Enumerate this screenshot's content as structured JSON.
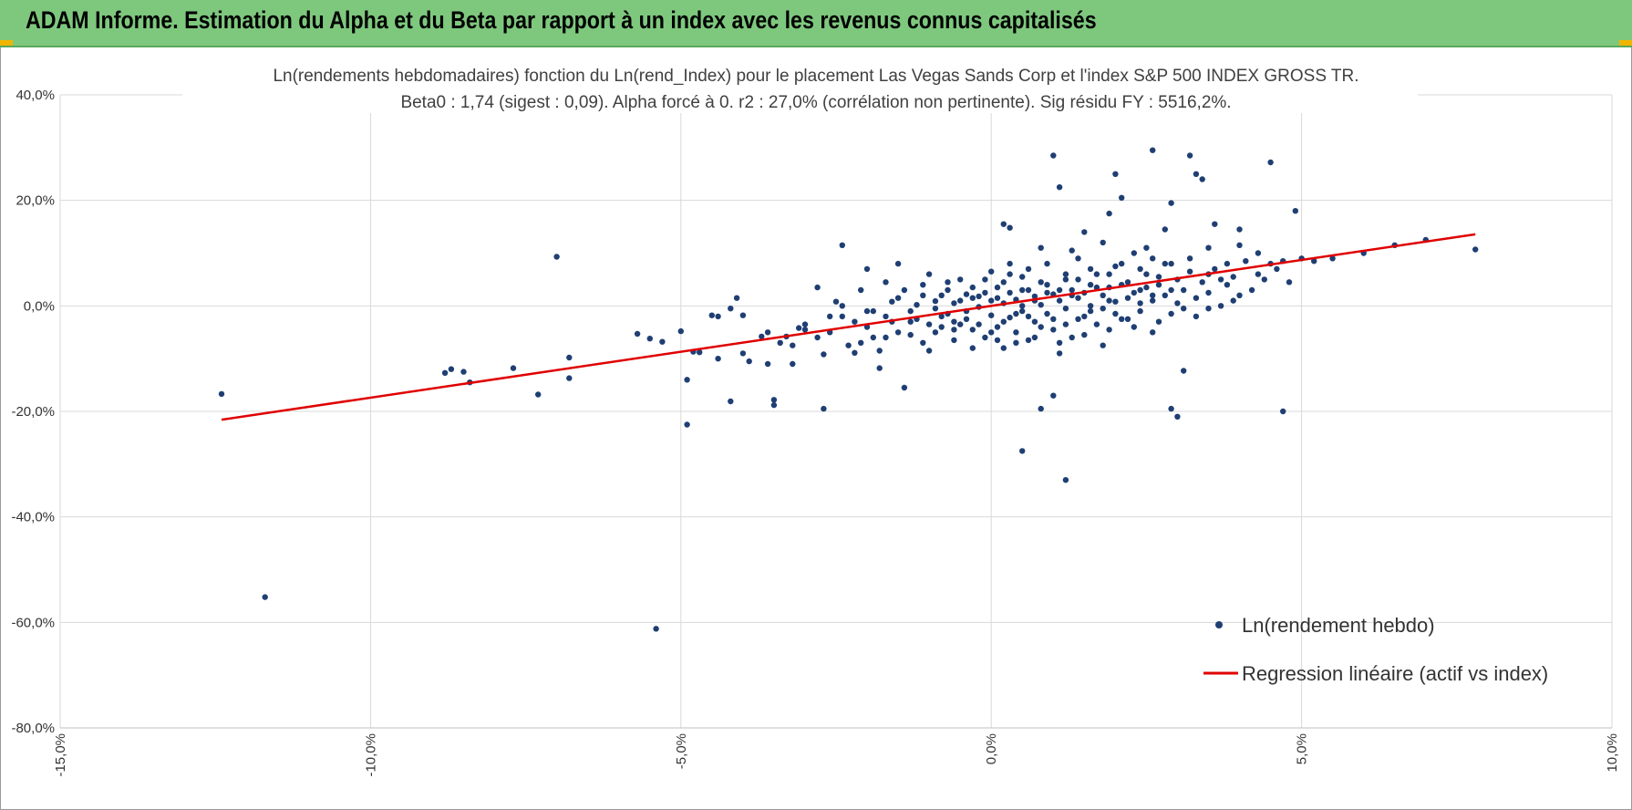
{
  "header": {
    "title": "ADAM Informe. Estimation du Alpha et du Beta par rapport à un index avec les revenus connus capitalisés"
  },
  "colors": {
    "header_bg": "#7ec87e",
    "points": "#1f3f73",
    "regression": "#e00000",
    "grid": "#d9d9d9",
    "accent": "#f0b400"
  },
  "chart_data": {
    "type": "scatter",
    "title": "Ln(rendements hebdomadaires) fonction du Ln(rend_Index) pour le placement Las Vegas Sands Corp et l'index S&P 500 INDEX GROSS TR.",
    "subtitle": "Beta0 : 1,74 (sigest : 0,09).  Alpha forcé à 0. r2 : 27,0% (corrélation non pertinente). Sig résidu FY : 5516,2%.",
    "xlim": [
      -0.15,
      0.1
    ],
    "ylim": [
      -0.8,
      0.4
    ],
    "x_ticks": [
      "-15,0%",
      "-10,0%",
      "-5,0%",
      "0,0%",
      "5,0%",
      "10,0%"
    ],
    "y_ticks": [
      "40,0%",
      "20,0%",
      "0,0%",
      "-20,0%",
      "-40,0%",
      "-60,0%",
      "-80,0%"
    ],
    "grid": true,
    "legend_position": "bottom-right",
    "series": [
      {
        "name": "Ln(rendement hebdo)",
        "kind": "scatter",
        "points": [
          [
            -0.124,
            -0.167
          ],
          [
            -0.117,
            -0.552
          ],
          [
            -0.088,
            -0.127
          ],
          [
            -0.087,
            -0.12
          ],
          [
            -0.085,
            -0.125
          ],
          [
            -0.084,
            -0.145
          ],
          [
            -0.077,
            -0.118
          ],
          [
            -0.073,
            -0.168
          ],
          [
            -0.07,
            0.093
          ],
          [
            -0.068,
            -0.098
          ],
          [
            -0.068,
            -0.137
          ],
          [
            -0.057,
            -0.053
          ],
          [
            -0.055,
            -0.062
          ],
          [
            -0.054,
            -0.612
          ],
          [
            -0.053,
            -0.068
          ],
          [
            -0.05,
            -0.048
          ],
          [
            -0.049,
            -0.225
          ],
          [
            -0.049,
            -0.14
          ],
          [
            -0.048,
            -0.087
          ],
          [
            -0.047,
            -0.088
          ],
          [
            -0.045,
            -0.018
          ],
          [
            -0.044,
            -0.02
          ],
          [
            -0.044,
            -0.1
          ],
          [
            -0.042,
            -0.181
          ],
          [
            -0.041,
            0.015
          ],
          [
            -0.04,
            -0.09
          ],
          [
            -0.04,
            -0.018
          ],
          [
            -0.039,
            -0.105
          ],
          [
            -0.037,
            -0.058
          ],
          [
            -0.036,
            -0.11
          ],
          [
            -0.035,
            -0.178
          ],
          [
            -0.035,
            -0.188
          ],
          [
            -0.034,
            -0.07
          ],
          [
            -0.033,
            -0.058
          ],
          [
            -0.032,
            -0.11
          ],
          [
            -0.031,
            -0.042
          ],
          [
            -0.03,
            -0.035
          ],
          [
            -0.028,
            0.035
          ],
          [
            -0.027,
            -0.195
          ],
          [
            -0.027,
            -0.092
          ],
          [
            -0.026,
            -0.05
          ],
          [
            -0.025,
            0.008
          ],
          [
            -0.024,
            -0.02
          ],
          [
            -0.023,
            -0.075
          ],
          [
            -0.022,
            -0.089
          ],
          [
            -0.021,
            -0.07
          ],
          [
            -0.02,
            -0.01
          ],
          [
            -0.02,
            -0.04
          ],
          [
            -0.019,
            -0.06
          ],
          [
            -0.018,
            -0.118
          ],
          [
            -0.017,
            -0.06
          ],
          [
            -0.016,
            0.008
          ],
          [
            -0.016,
            -0.03
          ],
          [
            -0.015,
            -0.05
          ],
          [
            -0.014,
            -0.155
          ],
          [
            -0.013,
            -0.01
          ],
          [
            -0.012,
            0.002
          ],
          [
            -0.011,
            -0.07
          ],
          [
            -0.01,
            -0.085
          ],
          [
            -0.009,
            0.009
          ],
          [
            -0.008,
            -0.04
          ],
          [
            -0.007,
            0.045
          ],
          [
            -0.007,
            -0.015
          ],
          [
            -0.006,
            -0.065
          ],
          [
            -0.005,
            -0.035
          ],
          [
            -0.004,
            -0.01
          ],
          [
            -0.004,
            0.022
          ],
          [
            -0.003,
            -0.045
          ],
          [
            -0.002,
            -0.002
          ],
          [
            -0.002,
            0.018
          ],
          [
            -0.001,
            -0.06
          ],
          [
            0.0,
            0.01
          ],
          [
            0.0,
            -0.018
          ],
          [
            0.001,
            0.035
          ],
          [
            0.001,
            -0.04
          ],
          [
            0.002,
            0.005
          ],
          [
            0.002,
            -0.08
          ],
          [
            0.003,
            0.06
          ],
          [
            0.003,
            -0.022
          ],
          [
            0.004,
            0.012
          ],
          [
            0.004,
            -0.05
          ],
          [
            0.005,
            0.03
          ],
          [
            0.005,
            -0.01
          ],
          [
            0.006,
            0.07
          ],
          [
            0.006,
            -0.065
          ],
          [
            0.007,
            0.018
          ],
          [
            0.007,
            -0.03
          ],
          [
            0.008,
            0.045
          ],
          [
            0.008,
            0.002
          ],
          [
            0.009,
            -0.015
          ],
          [
            0.009,
            0.08
          ],
          [
            0.01,
            0.022
          ],
          [
            0.01,
            -0.045
          ],
          [
            0.011,
            0.01
          ],
          [
            0.011,
            -0.09
          ],
          [
            0.012,
            0.05
          ],
          [
            0.012,
            -0.005
          ],
          [
            0.013,
            0.03
          ],
          [
            0.013,
            -0.06
          ],
          [
            0.014,
            0.015
          ],
          [
            0.014,
            0.09
          ],
          [
            0.015,
            -0.02
          ],
          [
            0.016,
            0.04
          ],
          [
            0.016,
            0.0
          ],
          [
            0.017,
            0.06
          ],
          [
            0.017,
            -0.035
          ],
          [
            0.018,
            0.02
          ],
          [
            0.018,
            -0.075
          ],
          [
            0.019,
            0.035
          ],
          [
            0.02,
            0.008
          ],
          [
            0.02,
            0.075
          ],
          [
            0.021,
            -0.025
          ],
          [
            0.022,
            0.045
          ],
          [
            0.022,
            0.015
          ],
          [
            0.023,
            0.1
          ],
          [
            0.024,
            -0.01
          ],
          [
            0.024,
            0.03
          ],
          [
            0.025,
            0.06
          ],
          [
            0.026,
            0.01
          ],
          [
            0.026,
            -0.05
          ],
          [
            0.027,
            0.04
          ],
          [
            0.028,
            0.02
          ],
          [
            0.028,
            0.08
          ],
          [
            0.029,
            -0.015
          ],
          [
            0.03,
            0.05
          ],
          [
            0.03,
            0.005
          ],
          [
            0.031,
            0.03
          ],
          [
            0.032,
            0.065
          ],
          [
            0.033,
            0.015
          ],
          [
            0.033,
            -0.02
          ],
          [
            0.034,
            0.045
          ],
          [
            0.035,
            0.025
          ],
          [
            0.036,
            0.07
          ],
          [
            0.037,
            0.0
          ],
          [
            0.038,
            0.04
          ],
          [
            0.039,
            0.055
          ],
          [
            0.04,
            0.02
          ],
          [
            0.041,
            0.085
          ],
          [
            0.042,
            0.03
          ],
          [
            0.043,
            0.06
          ],
          [
            0.044,
            0.05
          ],
          [
            0.046,
            0.07
          ],
          [
            0.048,
            0.045
          ],
          [
            0.05,
            0.09
          ],
          [
            0.052,
            0.085
          ],
          [
            0.055,
            0.09
          ],
          [
            0.06,
            0.1
          ],
          [
            0.065,
            0.115
          ],
          [
            0.07,
            0.125
          ],
          [
            0.078,
            0.107
          ],
          [
            0.01,
            -0.17
          ],
          [
            0.012,
            -0.33
          ],
          [
            0.008,
            -0.195
          ],
          [
            0.005,
            -0.275
          ],
          [
            0.03,
            -0.21
          ],
          [
            0.029,
            -0.195
          ],
          [
            0.047,
            -0.2
          ],
          [
            0.031,
            -0.123
          ],
          [
            0.026,
            0.295
          ],
          [
            0.02,
            0.25
          ],
          [
            0.021,
            0.205
          ],
          [
            0.01,
            0.285
          ],
          [
            0.011,
            0.225
          ],
          [
            0.032,
            0.285
          ],
          [
            0.033,
            0.25
          ],
          [
            0.034,
            0.24
          ],
          [
            0.045,
            0.272
          ],
          [
            0.049,
            0.18
          ],
          [
            0.04,
            0.145
          ],
          [
            0.036,
            0.155
          ],
          [
            0.029,
            0.195
          ],
          [
            0.028,
            0.145
          ],
          [
            0.019,
            0.175
          ],
          [
            0.002,
            0.155
          ],
          [
            0.003,
            0.148
          ],
          [
            0.015,
            0.14
          ],
          [
            -0.024,
            0.115
          ],
          [
            -0.042,
            -0.005
          ],
          [
            -0.03,
            -0.045
          ],
          [
            -0.02,
            0.07
          ],
          [
            -0.015,
            0.08
          ],
          [
            -0.01,
            0.06
          ],
          [
            -0.005,
            0.05
          ],
          [
            0.0,
            0.065
          ],
          [
            0.003,
            0.08
          ],
          [
            0.008,
            0.11
          ],
          [
            0.013,
            0.105
          ],
          [
            0.018,
            0.12
          ],
          [
            0.025,
            0.11
          ],
          [
            0.035,
            0.11
          ],
          [
            0.04,
            0.115
          ],
          [
            0.043,
            0.1
          ],
          [
            0.047,
            0.085
          ],
          [
            0.045,
            0.08
          ],
          [
            0.038,
            0.08
          ],
          [
            -0.036,
            -0.05
          ],
          [
            -0.032,
            -0.075
          ],
          [
            -0.028,
            -0.06
          ],
          [
            -0.022,
            -0.03
          ],
          [
            -0.018,
            -0.085
          ],
          [
            -0.013,
            -0.055
          ],
          [
            -0.009,
            -0.05
          ],
          [
            -0.006,
            -0.03
          ],
          [
            -0.003,
            -0.08
          ],
          [
            0.001,
            -0.065
          ],
          [
            0.004,
            -0.07
          ],
          [
            0.007,
            -0.06
          ],
          [
            0.011,
            -0.07
          ],
          [
            0.015,
            -0.055
          ],
          [
            0.019,
            -0.045
          ],
          [
            0.023,
            -0.04
          ],
          [
            0.027,
            -0.03
          ],
          [
            0.031,
            -0.005
          ],
          [
            0.035,
            -0.005
          ],
          [
            0.039,
            0.01
          ],
          [
            -0.026,
            -0.02
          ],
          [
            -0.024,
            0.0
          ],
          [
            -0.021,
            0.03
          ],
          [
            -0.017,
            0.045
          ],
          [
            -0.014,
            0.03
          ],
          [
            -0.011,
            0.04
          ],
          [
            -0.008,
            0.02
          ],
          [
            -0.006,
            0.005
          ],
          [
            -0.003,
            0.035
          ],
          [
            -0.001,
            0.05
          ],
          [
            0.002,
            0.045
          ],
          [
            0.005,
            0.055
          ],
          [
            0.006,
            0.03
          ],
          [
            0.009,
            0.04
          ],
          [
            0.012,
            0.06
          ],
          [
            0.014,
            0.05
          ],
          [
            0.016,
            0.07
          ],
          [
            0.019,
            0.06
          ],
          [
            0.021,
            0.08
          ],
          [
            0.024,
            0.07
          ],
          [
            0.026,
            0.09
          ],
          [
            0.029,
            0.08
          ],
          [
            0.032,
            0.09
          ],
          [
            0.035,
            0.06
          ],
          [
            0.037,
            0.05
          ],
          [
            -0.012,
            -0.025
          ],
          [
            -0.01,
            -0.035
          ],
          [
            -0.008,
            -0.02
          ],
          [
            -0.006,
            -0.045
          ],
          [
            -0.004,
            -0.025
          ],
          [
            -0.002,
            -0.035
          ],
          [
            0.0,
            -0.05
          ],
          [
            0.002,
            -0.03
          ],
          [
            0.004,
            -0.015
          ],
          [
            0.006,
            -0.02
          ],
          [
            0.008,
            -0.04
          ],
          [
            0.01,
            -0.025
          ],
          [
            0.012,
            -0.035
          ],
          [
            0.014,
            -0.025
          ],
          [
            0.016,
            -0.01
          ],
          [
            0.018,
            -0.005
          ],
          [
            0.02,
            -0.015
          ],
          [
            0.022,
            -0.025
          ],
          [
            0.024,
            0.005
          ],
          [
            0.026,
            0.02
          ],
          [
            -0.019,
            -0.01
          ],
          [
            -0.017,
            -0.02
          ],
          [
            -0.015,
            0.015
          ],
          [
            -0.013,
            -0.03
          ],
          [
            -0.011,
            0.02
          ],
          [
            -0.009,
            -0.005
          ],
          [
            -0.007,
            0.03
          ],
          [
            -0.005,
            0.01
          ],
          [
            -0.003,
            0.015
          ],
          [
            -0.001,
            0.025
          ],
          [
            0.001,
            0.015
          ],
          [
            0.003,
            0.025
          ],
          [
            0.005,
            0.0
          ],
          [
            0.007,
            0.01
          ],
          [
            0.009,
            0.025
          ],
          [
            0.011,
            0.03
          ],
          [
            0.013,
            0.02
          ],
          [
            0.015,
            0.025
          ],
          [
            0.017,
            0.035
          ],
          [
            0.019,
            0.01
          ],
          [
            0.021,
            0.04
          ],
          [
            0.023,
            0.025
          ],
          [
            0.025,
            0.035
          ],
          [
            0.027,
            0.055
          ],
          [
            0.029,
            0.03
          ]
        ]
      },
      {
        "name": "Regression linéaire (actif vs index)",
        "kind": "line",
        "slope": 1.74,
        "x_range": [
          -0.124,
          0.078
        ]
      }
    ]
  }
}
